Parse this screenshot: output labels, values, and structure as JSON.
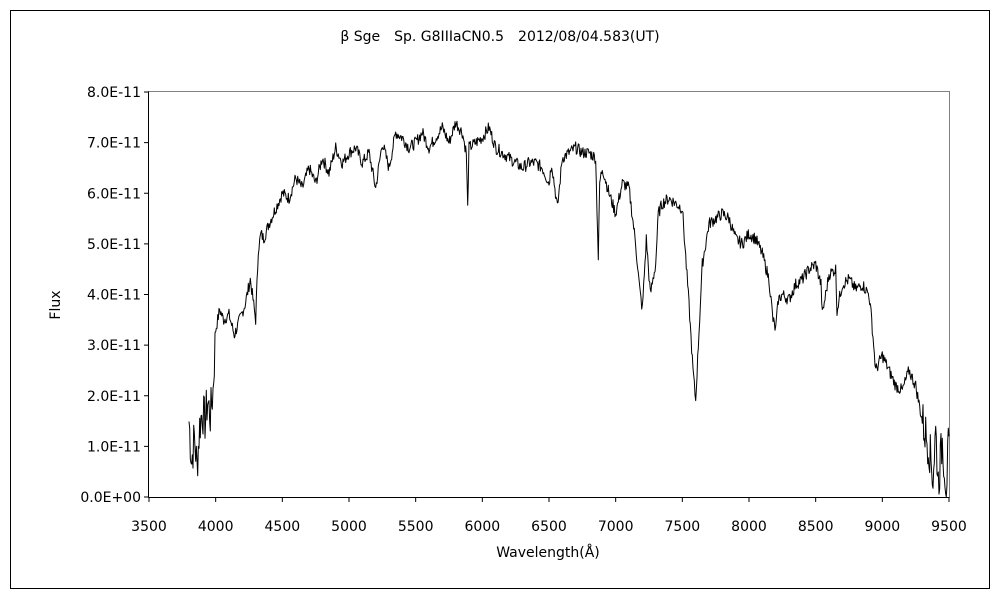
{
  "chart_data": {
    "type": "line",
    "title": "β Sge　Sp. G8IIIaCN0.5　2012/08/04.583(UT)",
    "xlabel": "Wavelength(Å)",
    "ylabel": "Flux",
    "xlim": [
      3500,
      9500
    ],
    "ylim": [
      0,
      8e-11
    ],
    "x_ticks": [
      3500,
      4000,
      4500,
      5000,
      5500,
      6000,
      6500,
      7000,
      7500,
      8000,
      8500,
      9000,
      9500
    ],
    "x_tick_labels": [
      "3500",
      "4000",
      "4500",
      "5000",
      "5500",
      "6000",
      "6500",
      "7000",
      "7500",
      "8000",
      "8500",
      "9000",
      "9500"
    ],
    "y_ticks": [
      0,
      1e-11,
      2e-11,
      3e-11,
      4e-11,
      5e-11,
      6e-11,
      7e-11,
      8e-11
    ],
    "y_tick_labels": [
      "0.0E+00",
      "1.0E-11",
      "2.0E-11",
      "3.0E-11",
      "4.0E-11",
      "5.0E-11",
      "6.0E-11",
      "7.0E-11",
      "8.0E-11"
    ],
    "grid": false,
    "series": [
      {
        "color": "#000000",
        "x": [
          3800,
          3820,
          3840,
          3860,
          3880,
          3900,
          3920,
          3940,
          3960,
          3980,
          4000,
          4030,
          4060,
          4100,
          4140,
          4180,
          4220,
          4260,
          4300,
          4320,
          4340,
          4360,
          4400,
          4450,
          4500,
          4550,
          4600,
          4650,
          4700,
          4750,
          4800,
          4850,
          4900,
          4950,
          5000,
          5050,
          5100,
          5150,
          5200,
          5250,
          5300,
          5350,
          5400,
          5450,
          5500,
          5550,
          5600,
          5650,
          5700,
          5750,
          5800,
          5850,
          5880,
          5890,
          5900,
          5950,
          6000,
          6050,
          6100,
          6150,
          6200,
          6250,
          6300,
          6350,
          6400,
          6450,
          6500,
          6520,
          6563,
          6600,
          6650,
          6700,
          6750,
          6800,
          6850,
          6870,
          6880,
          6900,
          6950,
          7000,
          7050,
          7100,
          7150,
          7180,
          7200,
          7230,
          7260,
          7300,
          7320,
          7350,
          7400,
          7450,
          7500,
          7550,
          7580,
          7600,
          7620,
          7650,
          7700,
          7750,
          7800,
          7850,
          7900,
          7950,
          8000,
          8050,
          8100,
          8150,
          8180,
          8200,
          8220,
          8250,
          8300,
          8350,
          8400,
          8450,
          8500,
          8540,
          8550,
          8600,
          8650,
          8660,
          8700,
          8750,
          8800,
          8850,
          8900,
          8920,
          8950,
          9000,
          9050,
          9100,
          9150,
          9200,
          9250,
          9300,
          9350,
          9380,
          9400,
          9420,
          9450,
          9480,
          9500
        ],
        "values": [
          1.5e-11,
          7e-12,
          1.2e-11,
          6e-12,
          1.4e-11,
          1.7e-11,
          1.5e-11,
          1.9e-11,
          1.6e-11,
          2.1e-11,
          3.3e-11,
          3.7e-11,
          3.5e-11,
          3.6e-11,
          3.2e-11,
          3.5e-11,
          3.8e-11,
          4.3e-11,
          3.5e-11,
          4.9e-11,
          5.2e-11,
          5.1e-11,
          5.4e-11,
          5.7e-11,
          6e-11,
          5.9e-11,
          6.3e-11,
          6.1e-11,
          6.5e-11,
          6.2e-11,
          6.7e-11,
          6.4e-11,
          6.9e-11,
          6.6e-11,
          6.8e-11,
          6.9e-11,
          6.6e-11,
          6.8e-11,
          6.1e-11,
          7e-11,
          6.5e-11,
          7.2e-11,
          7.1e-11,
          6.9e-11,
          7e-11,
          7.2e-11,
          6.9e-11,
          7.1e-11,
          7.3e-11,
          7e-11,
          7.4e-11,
          7.2e-11,
          6.8e-11,
          5.7e-11,
          6.9e-11,
          7e-11,
          7.1e-11,
          7.3e-11,
          6.9e-11,
          6.8e-11,
          6.7e-11,
          6.6e-11,
          6.5e-11,
          6.6e-11,
          6.6e-11,
          6.5e-11,
          6.2e-11,
          6.6e-11,
          5.7e-11,
          6.7e-11,
          6.8e-11,
          6.9e-11,
          6.8e-11,
          6.8e-11,
          6.7e-11,
          4.7e-11,
          6.2e-11,
          6.5e-11,
          6e-11,
          5.6e-11,
          6.2e-11,
          6.1e-11,
          5e-11,
          4.1e-11,
          3.7e-11,
          5.1e-11,
          4e-11,
          4.6e-11,
          5.6e-11,
          5.8e-11,
          5.9e-11,
          5.8e-11,
          5.7e-11,
          3.8e-11,
          2.5e-11,
          1.9e-11,
          3e-11,
          4.6e-11,
          5.4e-11,
          5.5e-11,
          5.6e-11,
          5.5e-11,
          5.1e-11,
          5e-11,
          5.2e-11,
          5.1e-11,
          4.8e-11,
          4.3e-11,
          3.5e-11,
          3.3e-11,
          3.9e-11,
          4e-11,
          3.9e-11,
          4.2e-11,
          4.3e-11,
          4.5e-11,
          4.6e-11,
          4.2e-11,
          3.6e-11,
          4.4e-11,
          4.5e-11,
          3.7e-11,
          4.2e-11,
          4.3e-11,
          4.1e-11,
          4.2e-11,
          4e-11,
          3.5e-11,
          2.5e-11,
          2.8e-11,
          2.5e-11,
          2.2e-11,
          2.1e-11,
          2.5e-11,
          2.2e-11,
          1.5e-11,
          1e-11,
          4e-12,
          1.3e-11,
          3e-12,
          1.1e-11,
          2e-12,
          1.2e-11
        ]
      }
    ]
  }
}
